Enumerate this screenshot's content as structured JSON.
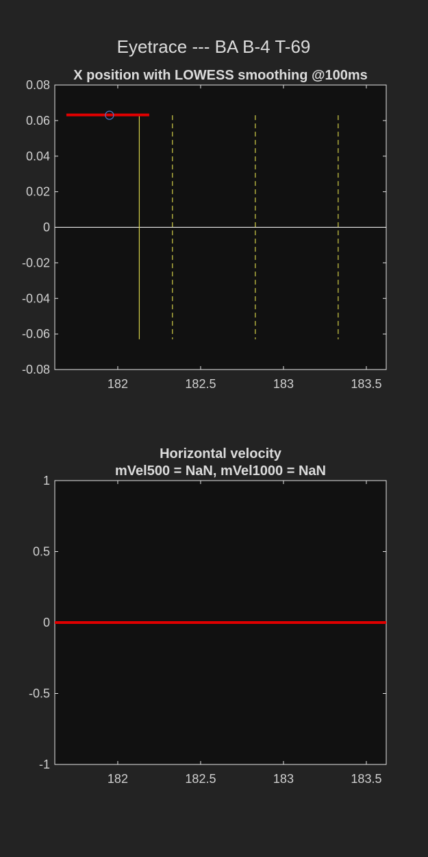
{
  "figure": {
    "title": "Eyetrace --- BA B-4 T-69"
  },
  "chart_data": [
    {
      "type": "line",
      "title": "X position with LOWESS smoothing @100ms",
      "xlabel": "",
      "ylabel": "",
      "xlim": [
        181.62,
        183.62
      ],
      "ylim": [
        -0.08,
        0.08
      ],
      "x_ticks": [
        182,
        182.5,
        183,
        183.5
      ],
      "x_tick_labels": [
        "182",
        "182.5",
        "183",
        "183.5"
      ],
      "y_ticks": [
        0.08,
        0.06,
        0.04,
        0.02,
        0,
        -0.02,
        -0.04,
        -0.06,
        -0.08
      ],
      "y_tick_labels": [
        "0.08",
        "0.06",
        "0.04",
        "0.02",
        "0",
        "-0.02",
        "-0.04",
        "-0.06",
        "-0.08"
      ],
      "grid": false,
      "zero_line": true,
      "series": [
        {
          "x": [
            181.69,
            182.19
          ],
          "y": [
            0.0632,
            0.0632
          ],
          "color": "#e00000"
        }
      ],
      "markers": [
        {
          "x": 181.95,
          "y": 0.063,
          "shape": "circle",
          "color": "#4a78d0"
        }
      ],
      "vertical_lines": [
        {
          "x": 182.13,
          "y_range": [
            -0.063,
            0.063
          ],
          "style": "solid",
          "color": "#d6d24a"
        },
        {
          "x": 182.33,
          "y_range": [
            -0.063,
            0.063
          ],
          "style": "dashed",
          "color": "#d6d24a"
        },
        {
          "x": 182.83,
          "y_range": [
            -0.063,
            0.063
          ],
          "style": "dashed",
          "color": "#d6d24a"
        },
        {
          "x": 183.33,
          "y_range": [
            -0.063,
            0.063
          ],
          "style": "dashed",
          "color": "#d6d24a"
        }
      ]
    },
    {
      "type": "line",
      "title": "Horizontal velocity",
      "subtitle": "mVel500 = NaN, mVel1000 = NaN",
      "xlabel": "",
      "ylabel": "",
      "xlim": [
        181.62,
        183.62
      ],
      "ylim": [
        -1,
        1
      ],
      "x_ticks": [
        182,
        182.5,
        183,
        183.5
      ],
      "x_tick_labels": [
        "182",
        "182.5",
        "183",
        "183.5"
      ],
      "y_ticks": [
        1,
        0.5,
        0,
        -0.5,
        -1
      ],
      "y_tick_labels": [
        "1",
        "0.5",
        "0",
        "-0.5",
        "-1"
      ],
      "grid": false,
      "zero_line": false,
      "series": [
        {
          "x": [
            181.62,
            183.62
          ],
          "y": [
            0,
            0
          ],
          "color": "#e00000"
        }
      ],
      "markers": [],
      "vertical_lines": []
    }
  ]
}
